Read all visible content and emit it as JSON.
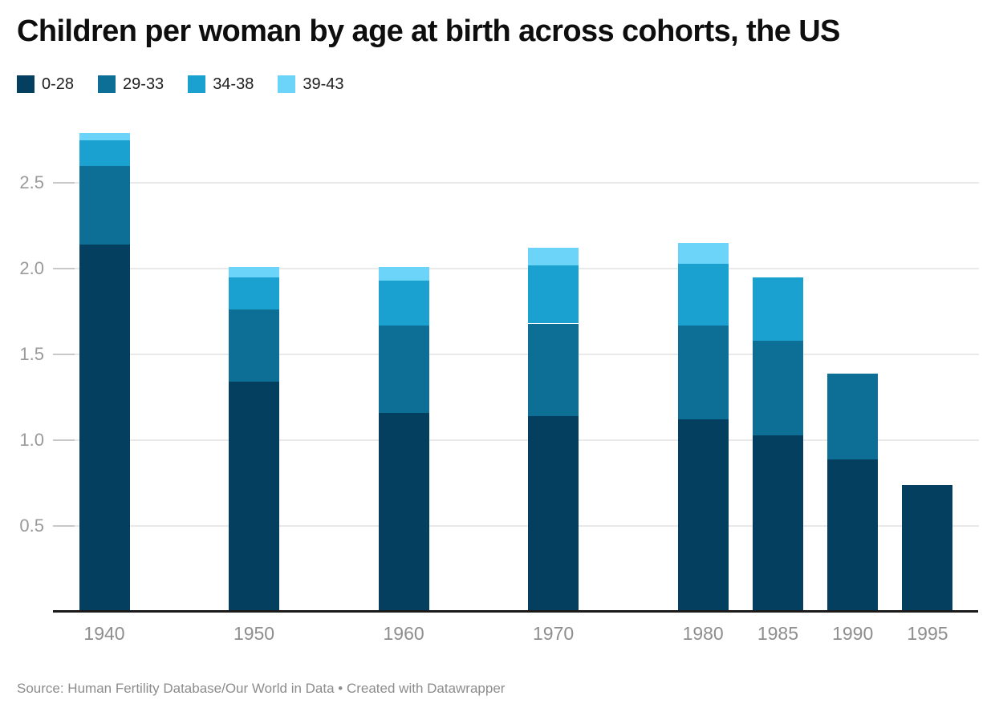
{
  "header": {
    "title": "Children per woman by age at birth across cohorts, the US"
  },
  "footer": {
    "source": "Source: Human Fertility Database/Our World in Data • Created with Datawrapper"
  },
  "chart_data": {
    "type": "bar",
    "stacked": true,
    "title": "Children per woman by age at birth across cohorts, the US",
    "categories": [
      "1940",
      "1950",
      "1960",
      "1970",
      "1980",
      "1985",
      "1990",
      "1995"
    ],
    "years": [
      1940,
      1950,
      1960,
      1970,
      1980,
      1985,
      1990,
      1995
    ],
    "series": [
      {
        "name": "0-28",
        "color": "#043f5f",
        "values": [
          2.14,
          1.34,
          1.16,
          1.14,
          1.12,
          1.03,
          0.89,
          0.74
        ]
      },
      {
        "name": "29-33",
        "color": "#0d6f96",
        "values": [
          0.46,
          0.42,
          0.51,
          0.54,
          0.55,
          0.55,
          0.5,
          0
        ]
      },
      {
        "name": "34-38",
        "color": "#1aa1cf",
        "values": [
          0.15,
          0.19,
          0.26,
          0.34,
          0.36,
          0.37,
          0,
          0
        ]
      },
      {
        "name": "39-43",
        "color": "#6cd3f9",
        "values": [
          0.04,
          0.06,
          0.08,
          0.1,
          0.12,
          0,
          0,
          0
        ]
      }
    ],
    "totals": [
      2.79,
      2.01,
      2.01,
      2.12,
      2.15,
      1.95,
      1.39,
      0.74
    ],
    "xlabel": "",
    "ylabel": "",
    "y_ticks": [
      "0.5",
      "1.0",
      "1.5",
      "2.0",
      "2.5"
    ],
    "y_tick_values": [
      0.5,
      1.0,
      1.5,
      2.0,
      2.5
    ],
    "ylim": [
      0,
      2.87
    ],
    "x_axis": "linear by cohort year",
    "grid": true,
    "legend_position": "top-left",
    "axis_colors": {
      "gridline": "#e9e9e9",
      "tick": "#c9c9c9",
      "baseline": "#1a1a1a",
      "tick_text": "#9a9a9a"
    }
  }
}
